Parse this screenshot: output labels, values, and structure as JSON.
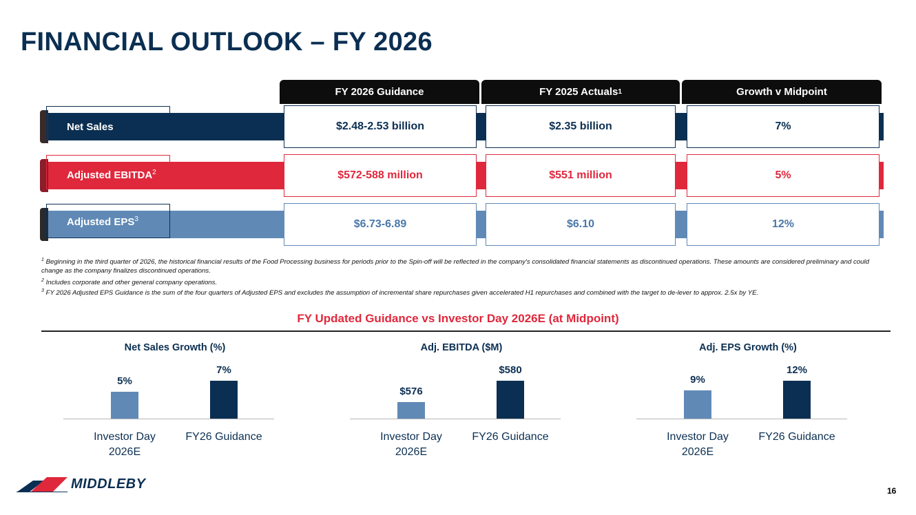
{
  "title": "FINANCIAL OUTLOOK – FY 2026",
  "colors": {
    "navy": "#0b2f52",
    "red": "#e0283c",
    "steel": "#6089b6",
    "black": "#0d0d0d"
  },
  "columns": {
    "guidance": "FY 2026 Guidance",
    "actuals": "FY 2025 Actuals",
    "actuals_sup": "1",
    "growth": "Growth v Midpoint"
  },
  "rows": [
    {
      "label": "Net Sales",
      "sup": "",
      "guidance": "$2.48-2.53 billion",
      "actuals": "$2.35 billion",
      "growth": "7%"
    },
    {
      "label": "Adjusted EBITDA",
      "sup": "2",
      "guidance": "$572-588 million",
      "actuals": "$551 million",
      "growth": "5%"
    },
    {
      "label": "Adjusted EPS",
      "sup": "3",
      "guidance": "$6.73-6.89",
      "actuals": "$6.10",
      "growth": "12%"
    }
  ],
  "footnotes": [
    {
      "num": "1",
      "text": "Beginning in the third quarter of 2026, the historical financial results of the Food Processing business for periods prior to the Spin-off will be reflected in the company's consolidated financial statements as discontinued operations. These amounts are considered preliminary and could change as the company finalizes discontinued operations."
    },
    {
      "num": "2",
      "text": "Includes corporate and other general company operations."
    },
    {
      "num": "3",
      "text": "FY 2026 Adjusted EPS Guidance is the sum of the four quarters of Adjusted EPS and excludes the assumption of incremental share repurchases given accelerated H1 repurchases and combined with the target to de-lever to approx. 2.5x by YE."
    }
  ],
  "subheading": "FY Updated Guidance vs Investor Day 2026E (at Midpoint)",
  "chart_data": [
    {
      "type": "bar",
      "title": "Net Sales Growth (%)",
      "categories": [
        "Investor Day 2026E",
        "FY26 Guidance"
      ],
      "values": [
        5,
        7
      ],
      "labels": [
        "5%",
        "7%"
      ],
      "colors": [
        "#6089b6",
        "#0b2f52"
      ],
      "ylim": [
        0,
        7
      ],
      "show_axis": false
    },
    {
      "type": "bar",
      "title": "Adj. EBITDA ($M)",
      "categories": [
        "Investor Day 2026E",
        "FY26 Guidance"
      ],
      "values": [
        576,
        580
      ],
      "labels": [
        "$576",
        "$580"
      ],
      "colors": [
        "#6089b6",
        "#0b2f52"
      ],
      "ylim": [
        573,
        580
      ],
      "show_axis": false
    },
    {
      "type": "bar",
      "title": "Adj. EPS Growth (%)",
      "categories": [
        "Investor Day 2026E",
        "FY26 Guidance"
      ],
      "values": [
        9,
        12
      ],
      "labels": [
        "9%",
        "12%"
      ],
      "colors": [
        "#6089b6",
        "#0b2f52"
      ],
      "ylim": [
        0,
        12
      ],
      "show_axis": false
    }
  ],
  "logo": {
    "text": "MIDDLEBY"
  },
  "page_number": "16"
}
